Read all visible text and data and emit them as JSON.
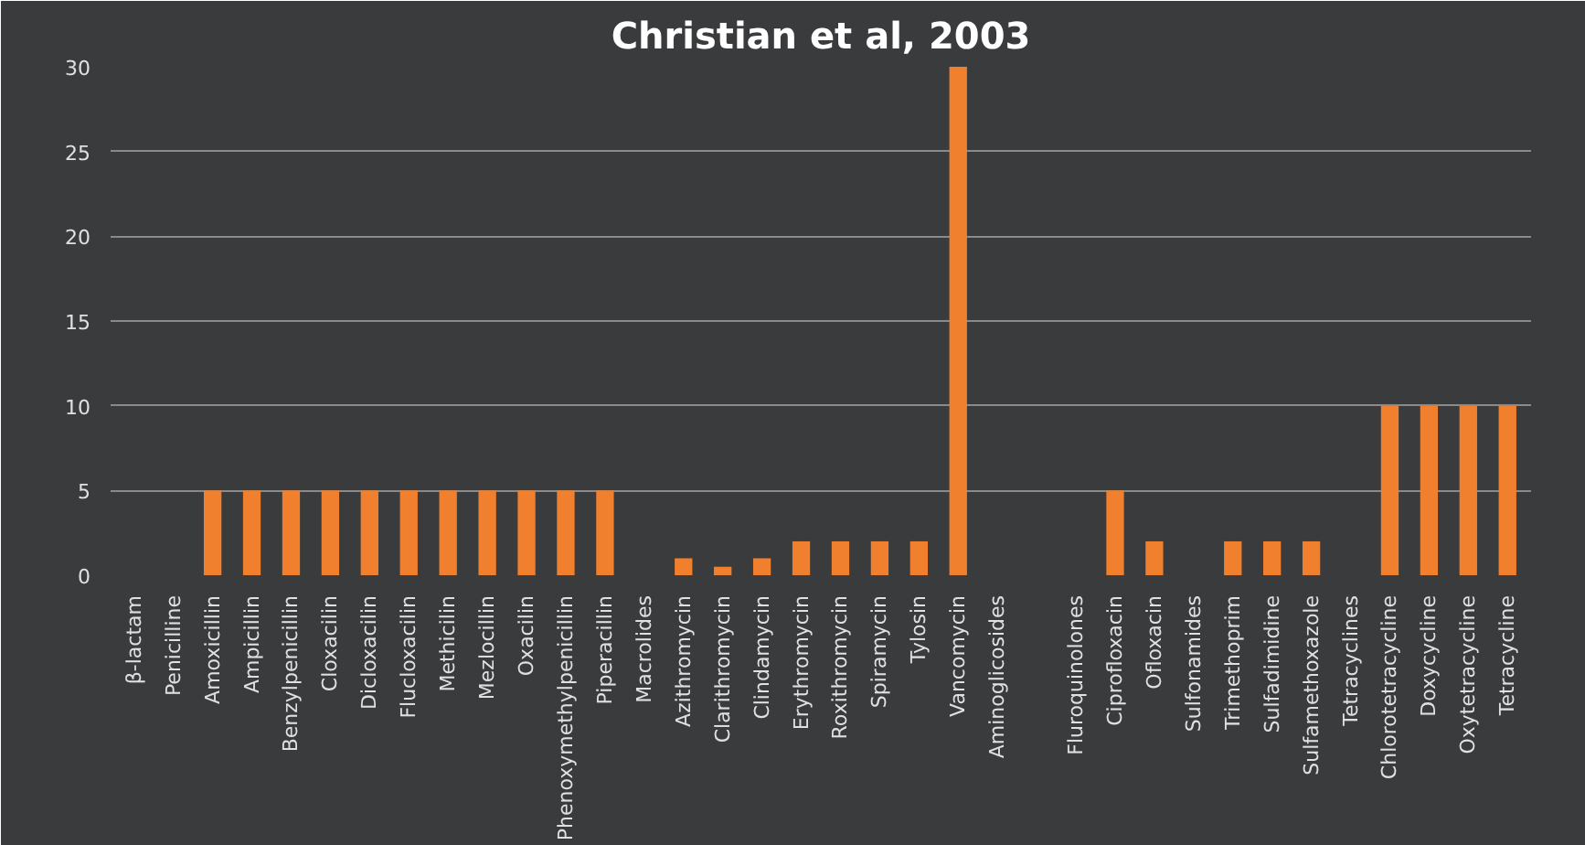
{
  "chart_data": {
    "type": "bar",
    "title": "Christian et al, 2003",
    "categories": [
      "β-lactam",
      "Penicilline",
      "Amoxicillin",
      "Ampicillin",
      "Benzylpenicillin",
      "Cloxacilin",
      "Dicloxacilin",
      "Flucloxacilin",
      "Methicilin",
      "Mezlocillin",
      "Oxacilin",
      "Phenoxymethylpenicillin",
      "Piperacillin",
      "Macrolides",
      "Azithromycin",
      "Clarithromycin",
      "Clindamycin",
      "Erythromycin",
      "Roxithromycin",
      "Spiramycin",
      "Tylosin",
      "Vancomycin",
      "Aminoglicosides",
      null,
      "Fluroquinolones",
      "Ciprofloxacin",
      "Ofloxacin",
      "Sulfonamides",
      "Trimethoprim",
      "Sulfadimidine",
      "Sulfamethoxazole",
      "Tetracyclines",
      "Chlorotetracycline",
      "Doxycycline",
      "Oxytetracycline",
      "Tetracycline"
    ],
    "values": [
      null,
      null,
      5,
      5,
      5,
      5,
      5,
      5,
      5,
      5,
      5,
      5,
      5,
      null,
      1,
      0.5,
      1,
      2,
      2,
      2,
      2,
      30,
      null,
      null,
      null,
      5,
      2,
      null,
      2,
      2,
      2,
      null,
      10,
      10,
      10,
      10
    ],
    "color": "#f07f2e",
    "ylim": [
      0,
      30
    ],
    "yticks": [
      0,
      5,
      10,
      15,
      20,
      25,
      30
    ],
    "grid": "y"
  }
}
